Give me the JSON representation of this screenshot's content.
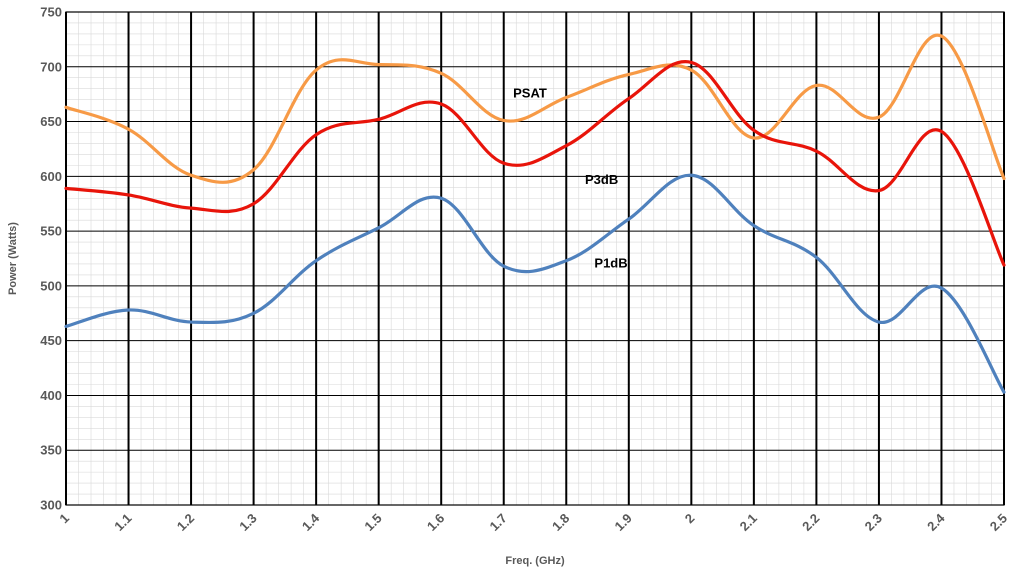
{
  "chart_data": {
    "type": "line",
    "title": "",
    "xlabel": "Freq. (GHz)",
    "ylabel": "Power (Watts)",
    "xlim": [
      1,
      2.5
    ],
    "ylim": [
      300,
      750
    ],
    "x_ticks": [
      "1",
      "1.1",
      "1.2",
      "1.3",
      "1.4",
      "1.5",
      "1.6",
      "1.7",
      "1.8",
      "1.9",
      "2",
      "2.1",
      "2.2",
      "2.3",
      "2.4",
      "2.5"
    ],
    "y_ticks": [
      "300",
      "350",
      "400",
      "450",
      "500",
      "550",
      "600",
      "650",
      "700",
      "750"
    ],
    "grid": true,
    "series": [
      {
        "name": "PSAT",
        "color": "#f79a46",
        "x": [
          1.0,
          1.1,
          1.2,
          1.3,
          1.4,
          1.5,
          1.6,
          1.7,
          1.8,
          1.9,
          2.0,
          2.1,
          2.2,
          2.3,
          2.4,
          2.5
        ],
        "values": [
          663,
          643,
          601,
          606,
          697,
          702,
          694,
          651,
          672,
          693,
          697,
          635,
          683,
          654,
          728,
          598
        ]
      },
      {
        "name": "P3dB",
        "color": "#e8140a",
        "x": [
          1.0,
          1.1,
          1.2,
          1.3,
          1.4,
          1.5,
          1.6,
          1.7,
          1.8,
          1.9,
          2.0,
          2.1,
          2.2,
          2.3,
          2.4,
          2.5
        ],
        "values": [
          589,
          583,
          571,
          575,
          638,
          652,
          666,
          612,
          628,
          671,
          704,
          642,
          623,
          587,
          641,
          519
        ]
      },
      {
        "name": "P1dB",
        "color": "#4f81bd",
        "x": [
          1.0,
          1.1,
          1.2,
          1.3,
          1.4,
          1.5,
          1.6,
          1.7,
          1.8,
          1.9,
          2.0,
          2.1,
          2.2,
          2.3,
          2.4,
          2.5
        ],
        "values": [
          463,
          478,
          467,
          475,
          523,
          553,
          580,
          518,
          523,
          561,
          601,
          555,
          526,
          467,
          498,
          403
        ]
      }
    ],
    "annotations": [
      {
        "text": "PSAT",
        "x": 1.715,
        "y": 672
      },
      {
        "text": "P3dB",
        "x": 1.83,
        "y": 593
      },
      {
        "text": "P1dB",
        "x": 1.845,
        "y": 517
      }
    ]
  }
}
